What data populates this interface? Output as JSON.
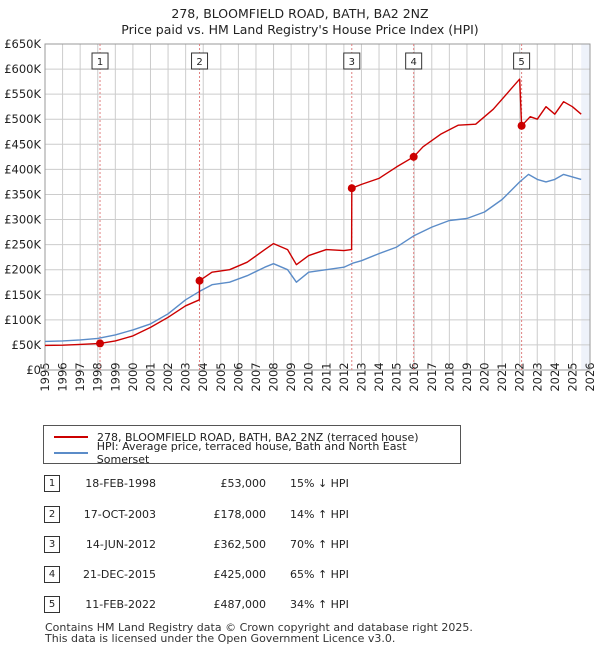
{
  "chart_data": {
    "type": "line",
    "title": "278, BLOOMFIELD ROAD, BATH, BA2 2NZ",
    "subtitle": "Price paid vs. HM Land Registry's House Price Index (HPI)",
    "xlim": [
      1995,
      2026
    ],
    "ylim": [
      0,
      650000
    ],
    "y_ticks": [
      0,
      50000,
      100000,
      150000,
      200000,
      250000,
      300000,
      350000,
      400000,
      450000,
      500000,
      550000,
      600000,
      650000
    ],
    "y_tick_labels": [
      "£0",
      "£50K",
      "£100K",
      "£150K",
      "£200K",
      "£250K",
      "£300K",
      "£350K",
      "£400K",
      "£450K",
      "£500K",
      "£550K",
      "£600K",
      "£650K"
    ],
    "x_ticks": [
      1995,
      1996,
      1997,
      1998,
      1999,
      2000,
      2001,
      2002,
      2003,
      2004,
      2005,
      2006,
      2007,
      2008,
      2009,
      2010,
      2011,
      2012,
      2013,
      2014,
      2015,
      2016,
      2017,
      2018,
      2019,
      2020,
      2021,
      2022,
      2023,
      2024,
      2025,
      2026
    ],
    "grid": true,
    "series": [
      {
        "name": "278, BLOOMFIELD ROAD, BATH, BA2 2NZ (terraced house)",
        "color": "#cc0000",
        "points": [
          [
            1995.0,
            49000
          ],
          [
            1996.0,
            49500
          ],
          [
            1997.0,
            51000
          ],
          [
            1998.13,
            53000
          ],
          [
            1999.0,
            58000
          ],
          [
            2000.0,
            68000
          ],
          [
            2001.0,
            85000
          ],
          [
            2002.0,
            105000
          ],
          [
            2003.0,
            128000
          ],
          [
            2003.78,
            140000
          ],
          [
            2003.79,
            178000
          ],
          [
            2004.5,
            195000
          ],
          [
            2005.5,
            200000
          ],
          [
            2006.5,
            215000
          ],
          [
            2007.5,
            240000
          ],
          [
            2008.0,
            252000
          ],
          [
            2008.8,
            240000
          ],
          [
            2009.3,
            210000
          ],
          [
            2010.0,
            228000
          ],
          [
            2011.0,
            240000
          ],
          [
            2012.0,
            238000
          ],
          [
            2012.44,
            240000
          ],
          [
            2012.45,
            362500
          ],
          [
            2013.0,
            370000
          ],
          [
            2014.0,
            382000
          ],
          [
            2015.0,
            405000
          ],
          [
            2015.97,
            425000
          ],
          [
            2016.5,
            445000
          ],
          [
            2017.5,
            470000
          ],
          [
            2018.5,
            488000
          ],
          [
            2019.5,
            490000
          ],
          [
            2020.5,
            520000
          ],
          [
            2021.5,
            560000
          ],
          [
            2022.0,
            580000
          ],
          [
            2022.11,
            487000
          ],
          [
            2022.6,
            505000
          ],
          [
            2023.0,
            500000
          ],
          [
            2023.5,
            525000
          ],
          [
            2024.0,
            510000
          ],
          [
            2024.5,
            535000
          ],
          [
            2025.0,
            525000
          ],
          [
            2025.5,
            510000
          ]
        ]
      },
      {
        "name": "HPI: Average price, terraced house, Bath and North East Somerset",
        "color": "#5b8cc8",
        "points": [
          [
            1995.0,
            57000
          ],
          [
            1996.0,
            58000
          ],
          [
            1997.0,
            60000
          ],
          [
            1998.0,
            63000
          ],
          [
            1999.0,
            70000
          ],
          [
            2000.0,
            80000
          ],
          [
            2001.0,
            92000
          ],
          [
            2002.0,
            112000
          ],
          [
            2003.0,
            140000
          ],
          [
            2003.8,
            157000
          ],
          [
            2004.5,
            170000
          ],
          [
            2005.5,
            175000
          ],
          [
            2006.5,
            188000
          ],
          [
            2007.5,
            205000
          ],
          [
            2008.0,
            212000
          ],
          [
            2008.8,
            200000
          ],
          [
            2009.3,
            175000
          ],
          [
            2010.0,
            195000
          ],
          [
            2011.0,
            200000
          ],
          [
            2012.0,
            205000
          ],
          [
            2012.5,
            213000
          ],
          [
            2013.0,
            218000
          ],
          [
            2014.0,
            232000
          ],
          [
            2015.0,
            245000
          ],
          [
            2016.0,
            268000
          ],
          [
            2017.0,
            285000
          ],
          [
            2018.0,
            298000
          ],
          [
            2019.0,
            302000
          ],
          [
            2020.0,
            315000
          ],
          [
            2021.0,
            340000
          ],
          [
            2022.0,
            375000
          ],
          [
            2022.5,
            390000
          ],
          [
            2023.0,
            380000
          ],
          [
            2023.5,
            375000
          ],
          [
            2024.0,
            380000
          ],
          [
            2024.5,
            390000
          ],
          [
            2025.0,
            385000
          ],
          [
            2025.5,
            380000
          ]
        ]
      }
    ],
    "sales": [
      {
        "n": "1",
        "x": 1998.13,
        "y": 53000
      },
      {
        "n": "2",
        "x": 2003.79,
        "y": 178000
      },
      {
        "n": "3",
        "x": 2012.45,
        "y": 362500
      },
      {
        "n": "4",
        "x": 2015.97,
        "y": 425000
      },
      {
        "n": "5",
        "x": 2022.11,
        "y": 487000
      }
    ],
    "colors": {
      "grid": "#cccccc",
      "vline": "#e08080",
      "shade": "#eef2fa"
    }
  },
  "legend": {
    "property": "278, BLOOMFIELD ROAD, BATH, BA2 2NZ (terraced house)",
    "hpi": "HPI: Average price, terraced house, Bath and North East Somerset"
  },
  "transactions": [
    {
      "n": "1",
      "date": "18-FEB-1998",
      "price": "£53,000",
      "hpi": "15% ↓ HPI"
    },
    {
      "n": "2",
      "date": "17-OCT-2003",
      "price": "£178,000",
      "hpi": "14% ↑ HPI"
    },
    {
      "n": "3",
      "date": "14-JUN-2012",
      "price": "£362,500",
      "hpi": "70% ↑ HPI"
    },
    {
      "n": "4",
      "date": "21-DEC-2015",
      "price": "£425,000",
      "hpi": "65% ↑ HPI"
    },
    {
      "n": "5",
      "date": "11-FEB-2022",
      "price": "£487,000",
      "hpi": "34% ↑ HPI"
    }
  ],
  "footer": {
    "line1": "Contains HM Land Registry data © Crown copyright and database right 2025.",
    "line2": "This data is licensed under the Open Government Licence v3.0."
  }
}
